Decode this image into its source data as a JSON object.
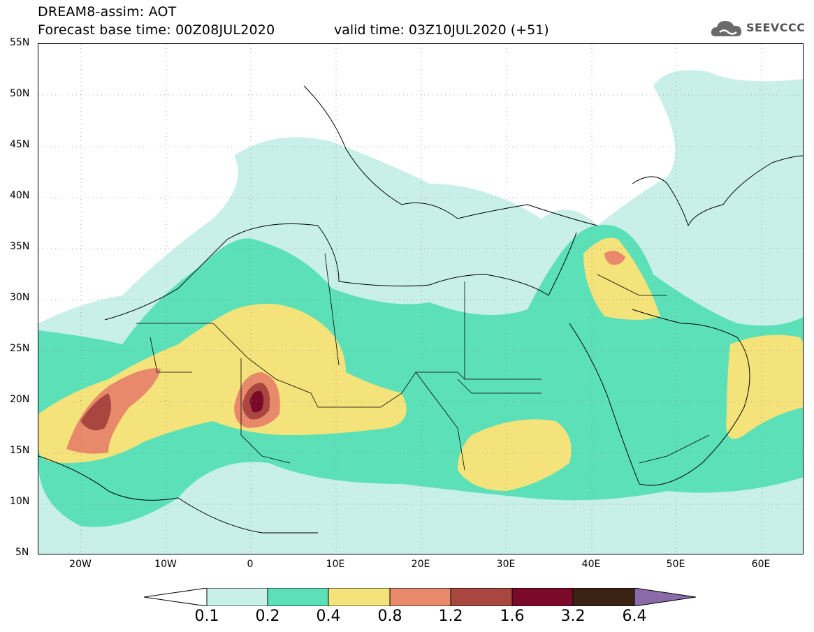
{
  "header": {
    "title_line1": "DREAM8-assim: AOT",
    "title_line2": "Forecast base time: 00Z08JUL2020",
    "valid_time": "valid time: 03Z10JUL2020 (+51)",
    "logo_text": "SEEVCCC"
  },
  "map": {
    "lat_labels": [
      "55N",
      "50N",
      "45N",
      "40N",
      "35N",
      "30N",
      "25N",
      "20N",
      "15N",
      "10N",
      "5N"
    ],
    "lon_labels": [
      "20W",
      "10W",
      "0",
      "10E",
      "20E",
      "30E",
      "40E",
      "50E",
      "60E"
    ],
    "lat_range": [
      5,
      55
    ],
    "lon_range": [
      -25,
      65
    ]
  },
  "colorbar": {
    "labels": [
      "0.1",
      "0.2",
      "0.4",
      "0.8",
      "1.2",
      "1.6",
      "3.2",
      "6.4"
    ],
    "colors": [
      "#ffffff",
      "#c8f0e8",
      "#5ce0b8",
      "#f4e37a",
      "#e8896b",
      "#a9463f",
      "#7b0a2a",
      "#3b2314",
      "#8a6aa8"
    ]
  },
  "colors": {
    "aot_0_1": "#c8f0e8",
    "aot_0_2": "#5ce0b8",
    "aot_0_4": "#f4e37a",
    "aot_0_8": "#e8896b",
    "aot_1_2": "#a9463f",
    "aot_1_6": "#7b0a2a"
  }
}
